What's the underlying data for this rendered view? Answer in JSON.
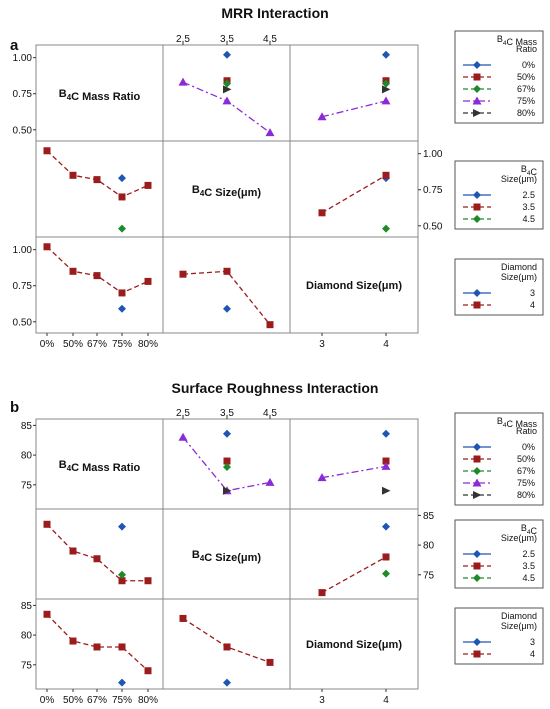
{
  "colors": {
    "c0": "#1f56b4",
    "c1": "#9b1c1c",
    "c2": "#1e8a2b",
    "c3": "#8a2bd6",
    "c4": "#333333"
  },
  "chart_data": [
    {
      "type": "scatter",
      "title": "MRR Interaction",
      "panel_label": "a",
      "factors": [
        {
          "name": "B₄C Mass Ratio",
          "diag_label": "B₄C Mass Ratio",
          "levels": [
            "0%",
            "50%",
            "67%",
            "75%",
            "80%"
          ]
        },
        {
          "name": "B₄C Size(μm)",
          "diag_label": "B₄C Size(μm)",
          "levels": [
            "2.5",
            "3.5",
            "4.5"
          ]
        },
        {
          "name": "Diamond Size(μm)",
          "diag_label": "Diamond Size(μm)",
          "levels": [
            "3",
            "4"
          ]
        }
      ],
      "y_ticks": [
        "0.50",
        "0.75",
        "1.00"
      ],
      "ylim": [
        0.45,
        1.06
      ],
      "legends": [
        {
          "title_lines": [
            "B₄C Mass",
            "Ratio"
          ],
          "entries": [
            "0%",
            "50%",
            "67%",
            "75%",
            "80%"
          ]
        },
        {
          "title_lines": [
            "B₄C",
            "Size(μm)"
          ],
          "entries": [
            "2.5",
            "3.5",
            "4.5"
          ]
        },
        {
          "title_lines": [
            "Diamond",
            "Size(μm)"
          ],
          "entries": [
            "3",
            "4"
          ]
        }
      ],
      "cells": [
        {
          "row": 0,
          "col": 1,
          "series": [
            {
              "legend_index": 0,
              "points": [
                [
                  1,
                  1.02
                ]
              ]
            },
            {
              "legend_index": 1,
              "points": [
                [
                  1,
                  0.84
                ]
              ]
            },
            {
              "legend_index": 2,
              "points": [
                [
                  1,
                  0.82
                ]
              ]
            },
            {
              "legend_index": 3,
              "points": [
                [
                  0,
                  0.83
                ],
                [
                  1,
                  0.7
                ],
                [
                  2,
                  0.48
                ]
              ]
            },
            {
              "legend_index": 4,
              "points": [
                [
                  1,
                  0.78
                ]
              ]
            }
          ]
        },
        {
          "row": 0,
          "col": 2,
          "series": [
            {
              "legend_index": 0,
              "points": [
                [
                  1,
                  1.02
                ]
              ]
            },
            {
              "legend_index": 1,
              "points": [
                [
                  1,
                  0.84
                ]
              ]
            },
            {
              "legend_index": 2,
              "points": [
                [
                  1,
                  0.82
                ]
              ]
            },
            {
              "legend_index": 3,
              "points": [
                [
                  0,
                  0.59
                ],
                [
                  1,
                  0.7
                ]
              ]
            },
            {
              "legend_index": 4,
              "points": [
                [
                  1,
                  0.78
                ]
              ]
            }
          ]
        },
        {
          "row": 1,
          "col": 0,
          "series": [
            {
              "legend_index": 0,
              "points": [
                [
                  3,
                  0.83
                ]
              ]
            },
            {
              "legend_index": 1,
              "points": [
                [
                  0,
                  1.02
                ],
                [
                  1,
                  0.85
                ],
                [
                  2,
                  0.82
                ],
                [
                  3,
                  0.7
                ],
                [
                  4,
                  0.78
                ]
              ]
            },
            {
              "legend_index": 2,
              "points": [
                [
                  3,
                  0.48
                ]
              ]
            }
          ]
        },
        {
          "row": 1,
          "col": 2,
          "series": [
            {
              "legend_index": 0,
              "points": [
                [
                  1,
                  0.83
                ]
              ]
            },
            {
              "legend_index": 1,
              "points": [
                [
                  0,
                  0.59
                ],
                [
                  1,
                  0.85
                ]
              ]
            },
            {
              "legend_index": 2,
              "points": [
                [
                  1,
                  0.48
                ]
              ]
            }
          ]
        },
        {
          "row": 2,
          "col": 0,
          "series": [
            {
              "legend_index": 0,
              "points": [
                [
                  3,
                  0.59
                ]
              ]
            },
            {
              "legend_index": 1,
              "points": [
                [
                  0,
                  1.02
                ],
                [
                  1,
                  0.85
                ],
                [
                  2,
                  0.82
                ],
                [
                  3,
                  0.7
                ],
                [
                  4,
                  0.78
                ]
              ]
            }
          ]
        },
        {
          "row": 2,
          "col": 1,
          "series": [
            {
              "legend_index": 0,
              "points": [
                [
                  1,
                  0.59
                ]
              ]
            },
            {
              "legend_index": 1,
              "points": [
                [
                  0,
                  0.83
                ],
                [
                  1,
                  0.85
                ],
                [
                  2,
                  0.48
                ]
              ]
            }
          ]
        }
      ]
    },
    {
      "type": "scatter",
      "title": "Surface Roughness Interaction",
      "panel_label": "b",
      "factors": [
        {
          "name": "B₄C Mass Ratio",
          "diag_label": "B₄C Mass Ratio",
          "levels": [
            "0%",
            "50%",
            "67%",
            "75%",
            "80%"
          ]
        },
        {
          "name": "B₄C Size(μm)",
          "diag_label": "B₄C Size(μm)",
          "levels": [
            "2.5",
            "3.5",
            "4.5"
          ]
        },
        {
          "name": "Diamond Size(μm)",
          "diag_label": "Diamond Size(μm)",
          "levels": [
            "3",
            "4"
          ]
        }
      ],
      "y_ticks": [
        "75",
        "80",
        "85"
      ],
      "ylim": [
        71.6,
        85.4
      ],
      "legends": [
        {
          "title_lines": [
            "B₄C Mass",
            "Ratio"
          ],
          "entries": [
            "0%",
            "50%",
            "67%",
            "75%",
            "80%"
          ]
        },
        {
          "title_lines": [
            "B₄C",
            "Size(μm)"
          ],
          "entries": [
            "2.5",
            "3.5",
            "4.5"
          ]
        },
        {
          "title_lines": [
            "Diamond",
            "Size(μm)"
          ],
          "entries": [
            "3",
            "4"
          ]
        }
      ],
      "cells": [
        {
          "row": 0,
          "col": 1,
          "series": [
            {
              "legend_index": 0,
              "points": [
                [
                  1,
                  83.6
                ]
              ]
            },
            {
              "legend_index": 1,
              "points": [
                [
                  1,
                  79.0
                ]
              ]
            },
            {
              "legend_index": 2,
              "points": [
                [
                  1,
                  78.0
                ]
              ]
            },
            {
              "legend_index": 3,
              "points": [
                [
                  0,
                  83.0
                ],
                [
                  1,
                  74.0
                ],
                [
                  2,
                  75.4
                ]
              ]
            },
            {
              "legend_index": 4,
              "points": [
                [
                  1,
                  74.0
                ]
              ]
            }
          ]
        },
        {
          "row": 0,
          "col": 2,
          "series": [
            {
              "legend_index": 0,
              "points": [
                [
                  1,
                  83.6
                ]
              ]
            },
            {
              "legend_index": 1,
              "points": [
                [
                  1,
                  79.0
                ]
              ]
            },
            {
              "legend_index": 3,
              "points": [
                [
                  0,
                  76.2
                ],
                [
                  1,
                  78.1
                ]
              ]
            },
            {
              "legend_index": 4,
              "points": [
                [
                  1,
                  74.0
                ]
              ]
            }
          ]
        },
        {
          "row": 1,
          "col": 0,
          "series": [
            {
              "legend_index": 0,
              "points": [
                [
                  3,
                  83.1
                ]
              ]
            },
            {
              "legend_index": 1,
              "points": [
                [
                  0,
                  83.5
                ],
                [
                  1,
                  79.0
                ],
                [
                  2,
                  77.7
                ],
                [
                  3,
                  74.0
                ],
                [
                  4,
                  74.0
                ]
              ]
            },
            {
              "legend_index": 2,
              "points": [
                [
                  3,
                  75.0
                ]
              ]
            }
          ]
        },
        {
          "row": 1,
          "col": 2,
          "series": [
            {
              "legend_index": 0,
              "points": [
                [
                  1,
                  83.1
                ]
              ]
            },
            {
              "legend_index": 1,
              "points": [
                [
                  0,
                  72.0
                ],
                [
                  1,
                  78.0
                ]
              ]
            },
            {
              "legend_index": 2,
              "points": [
                [
                  1,
                  75.2
                ]
              ]
            }
          ]
        },
        {
          "row": 2,
          "col": 0,
          "series": [
            {
              "legend_index": 0,
              "points": [
                [
                  3,
                  72.0
                ]
              ]
            },
            {
              "legend_index": 1,
              "points": [
                [
                  0,
                  83.5
                ],
                [
                  1,
                  79.0
                ],
                [
                  2,
                  78.0
                ],
                [
                  3,
                  78.0
                ],
                [
                  4,
                  74.0
                ]
              ]
            }
          ]
        },
        {
          "row": 2,
          "col": 1,
          "series": [
            {
              "legend_index": 0,
              "points": [
                [
                  1,
                  72.0
                ]
              ]
            },
            {
              "legend_index": 1,
              "points": [
                [
                  0,
                  82.8
                ],
                [
                  1,
                  78.0
                ],
                [
                  2,
                  75.4
                ]
              ]
            }
          ]
        }
      ]
    }
  ]
}
